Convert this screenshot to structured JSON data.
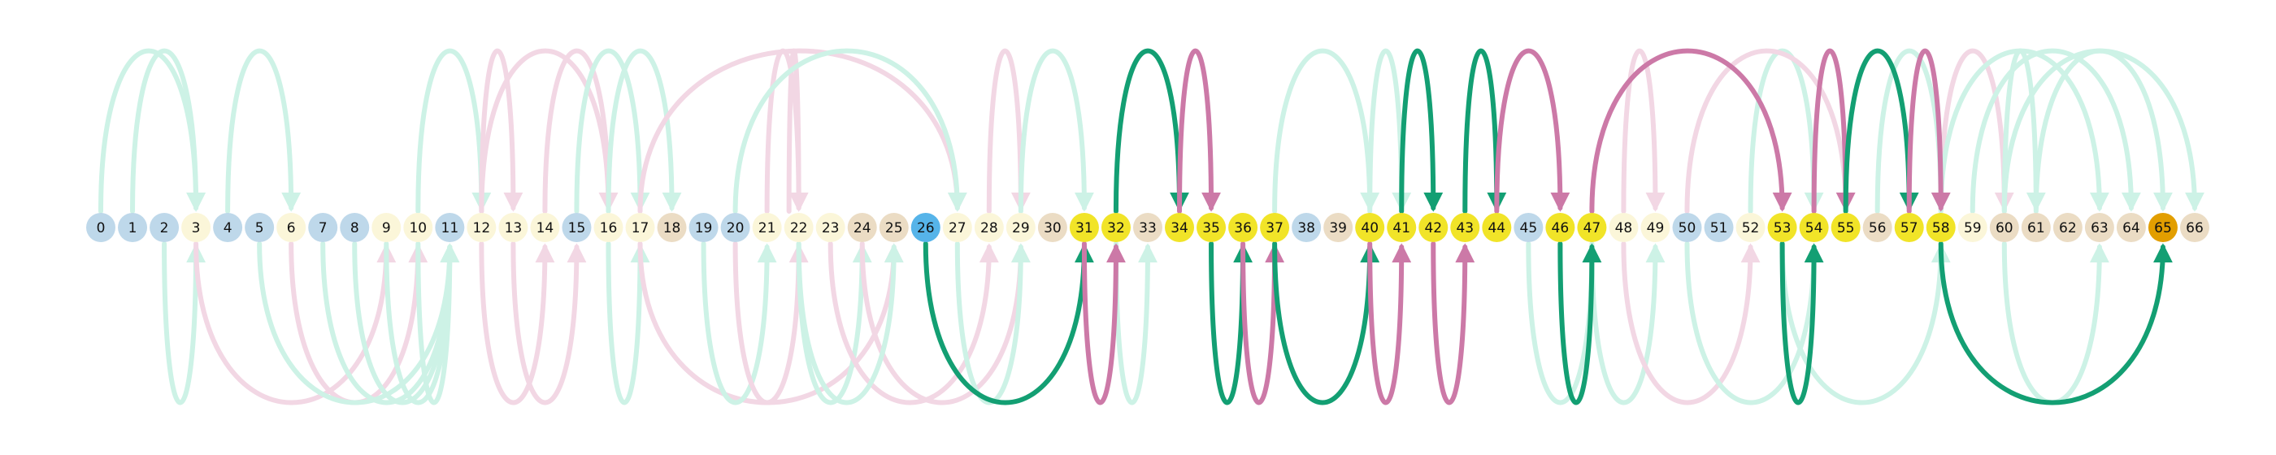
{
  "colors": {
    "green_strong": "#139f73",
    "green_faint": "#cdf2e6",
    "pink_strong": "#cc79a7",
    "pink_faint": "#f2d7e4",
    "node_blue": "#bed8ea",
    "node_cream": "#fbf6d9",
    "node_tan": "#ebdcc4",
    "node_yellow": "#f1e428",
    "node_blue_strong": "#56b4e9",
    "node_orange": "#e29e00"
  },
  "nodes": [
    {
      "label": "0",
      "color": "blue"
    },
    {
      "label": "1",
      "color": "blue"
    },
    {
      "label": "2",
      "color": "blue"
    },
    {
      "label": "3",
      "color": "cream"
    },
    {
      "label": "4",
      "color": "blue"
    },
    {
      "label": "5",
      "color": "blue"
    },
    {
      "label": "6",
      "color": "cream"
    },
    {
      "label": "7",
      "color": "blue"
    },
    {
      "label": "8",
      "color": "blue"
    },
    {
      "label": "9",
      "color": "cream"
    },
    {
      "label": "10",
      "color": "cream"
    },
    {
      "label": "11",
      "color": "blue"
    },
    {
      "label": "12",
      "color": "cream"
    },
    {
      "label": "13",
      "color": "cream"
    },
    {
      "label": "14",
      "color": "cream"
    },
    {
      "label": "15",
      "color": "blue"
    },
    {
      "label": "16",
      "color": "cream"
    },
    {
      "label": "17",
      "color": "cream"
    },
    {
      "label": "18",
      "color": "tan"
    },
    {
      "label": "19",
      "color": "blue"
    },
    {
      "label": "20",
      "color": "blue"
    },
    {
      "label": "21",
      "color": "cream"
    },
    {
      "label": "22",
      "color": "cream"
    },
    {
      "label": "23",
      "color": "cream"
    },
    {
      "label": "24",
      "color": "tan"
    },
    {
      "label": "25",
      "color": "tan"
    },
    {
      "label": "26",
      "color": "blue_strong"
    },
    {
      "label": "27",
      "color": "cream"
    },
    {
      "label": "28",
      "color": "cream"
    },
    {
      "label": "29",
      "color": "cream"
    },
    {
      "label": "30",
      "color": "tan"
    },
    {
      "label": "31",
      "color": "yellow"
    },
    {
      "label": "32",
      "color": "yellow"
    },
    {
      "label": "33",
      "color": "tan"
    },
    {
      "label": "34",
      "color": "yellow"
    },
    {
      "label": "35",
      "color": "yellow"
    },
    {
      "label": "36",
      "color": "yellow"
    },
    {
      "label": "37",
      "color": "yellow"
    },
    {
      "label": "38",
      "color": "blue"
    },
    {
      "label": "39",
      "color": "tan"
    },
    {
      "label": "40",
      "color": "yellow"
    },
    {
      "label": "41",
      "color": "yellow"
    },
    {
      "label": "42",
      "color": "yellow"
    },
    {
      "label": "43",
      "color": "yellow"
    },
    {
      "label": "44",
      "color": "yellow"
    },
    {
      "label": "45",
      "color": "blue"
    },
    {
      "label": "46",
      "color": "yellow"
    },
    {
      "label": "47",
      "color": "yellow"
    },
    {
      "label": "48",
      "color": "cream"
    },
    {
      "label": "49",
      "color": "cream"
    },
    {
      "label": "50",
      "color": "blue"
    },
    {
      "label": "51",
      "color": "blue"
    },
    {
      "label": "52",
      "color": "cream"
    },
    {
      "label": "53",
      "color": "yellow"
    },
    {
      "label": "54",
      "color": "yellow"
    },
    {
      "label": "55",
      "color": "yellow"
    },
    {
      "label": "56",
      "color": "tan"
    },
    {
      "label": "57",
      "color": "yellow"
    },
    {
      "label": "58",
      "color": "yellow"
    },
    {
      "label": "59",
      "color": "cream"
    },
    {
      "label": "60",
      "color": "tan"
    },
    {
      "label": "61",
      "color": "tan"
    },
    {
      "label": "62",
      "color": "tan"
    },
    {
      "label": "63",
      "color": "tan"
    },
    {
      "label": "64",
      "color": "tan"
    },
    {
      "label": "65",
      "color": "orange"
    },
    {
      "label": "66",
      "color": "tan"
    }
  ],
  "arcs": [
    {
      "from": 0,
      "to": 3,
      "side": "top",
      "color": "green_faint"
    },
    {
      "from": 1,
      "to": 3,
      "side": "top",
      "color": "green_faint"
    },
    {
      "from": 4,
      "to": 6,
      "side": "top",
      "color": "green_faint"
    },
    {
      "from": 10,
      "to": 12,
      "side": "top",
      "color": "green_faint"
    },
    {
      "from": 12,
      "to": 13,
      "side": "top",
      "color": "pink_faint"
    },
    {
      "from": 12,
      "to": 16,
      "side": "top",
      "color": "pink_faint"
    },
    {
      "from": 14,
      "to": 16,
      "side": "top",
      "color": "pink_faint"
    },
    {
      "from": 15,
      "to": 17,
      "side": "top",
      "color": "green_faint"
    },
    {
      "from": 16,
      "to": 18,
      "side": "top",
      "color": "green_faint"
    },
    {
      "from": 17,
      "to": 27,
      "side": "top",
      "color": "pink_faint"
    },
    {
      "from": 22,
      "to": 22,
      "side": "top",
      "color": "pink_faint"
    },
    {
      "from": 21,
      "to": 22,
      "side": "top",
      "color": "pink_faint"
    },
    {
      "from": 20,
      "to": 27,
      "side": "top",
      "color": "green_faint"
    },
    {
      "from": 28,
      "to": 29,
      "side": "top",
      "color": "pink_faint"
    },
    {
      "from": 29,
      "to": 31,
      "side": "top",
      "color": "green_faint"
    },
    {
      "from": 32,
      "to": 34,
      "side": "top",
      "color": "green_strong"
    },
    {
      "from": 34,
      "to": 35,
      "side": "top",
      "color": "pink_strong"
    },
    {
      "from": 37,
      "to": 40,
      "side": "top",
      "color": "green_faint"
    },
    {
      "from": 40,
      "to": 41,
      "side": "top",
      "color": "green_faint"
    },
    {
      "from": 41,
      "to": 42,
      "side": "top",
      "color": "green_strong"
    },
    {
      "from": 43,
      "to": 44,
      "side": "top",
      "color": "green_strong"
    },
    {
      "from": 44,
      "to": 46,
      "side": "top",
      "color": "pink_strong"
    },
    {
      "from": 47,
      "to": 53,
      "side": "top",
      "color": "pink_strong"
    },
    {
      "from": 48,
      "to": 49,
      "side": "top",
      "color": "pink_faint"
    },
    {
      "from": 52,
      "to": 54,
      "side": "top",
      "color": "green_faint"
    },
    {
      "from": 50,
      "to": 55,
      "side": "top",
      "color": "pink_faint"
    },
    {
      "from": 54,
      "to": 55,
      "side": "top",
      "color": "pink_strong"
    },
    {
      "from": 55,
      "to": 57,
      "side": "top",
      "color": "green_strong"
    },
    {
      "from": 56,
      "to": 58,
      "side": "top",
      "color": "green_faint"
    },
    {
      "from": 57,
      "to": 58,
      "side": "top",
      "color": "pink_strong"
    },
    {
      "from": 58,
      "to": 60,
      "side": "top",
      "color": "pink_faint"
    },
    {
      "from": 58,
      "to": 63,
      "side": "top",
      "color": "green_faint"
    },
    {
      "from": 59,
      "to": 64,
      "side": "top",
      "color": "green_faint"
    },
    {
      "from": 60,
      "to": 66,
      "side": "top",
      "color": "green_faint"
    },
    {
      "from": 60,
      "to": 61,
      "side": "top",
      "color": "green_faint"
    },
    {
      "from": 61,
      "to": 65,
      "side": "top",
      "color": "green_faint"
    },
    {
      "from": 2,
      "to": 3,
      "side": "bottom",
      "color": "green_faint"
    },
    {
      "from": 3,
      "to": 9,
      "side": "bottom",
      "color": "pink_faint"
    },
    {
      "from": 6,
      "to": 10,
      "side": "bottom",
      "color": "pink_faint"
    },
    {
      "from": 5,
      "to": 11,
      "side": "bottom",
      "color": "green_faint"
    },
    {
      "from": 7,
      "to": 11,
      "side": "bottom",
      "color": "green_faint"
    },
    {
      "from": 8,
      "to": 11,
      "side": "bottom",
      "color": "green_faint"
    },
    {
      "from": 9,
      "to": 11,
      "side": "bottom",
      "color": "green_faint"
    },
    {
      "from": 10,
      "to": 11,
      "side": "bottom",
      "color": "green_faint"
    },
    {
      "from": 12,
      "to": 14,
      "side": "bottom",
      "color": "pink_faint"
    },
    {
      "from": 13,
      "to": 15,
      "side": "bottom",
      "color": "pink_faint"
    },
    {
      "from": 16,
      "to": 17,
      "side": "bottom",
      "color": "green_faint"
    },
    {
      "from": 17,
      "to": 25,
      "side": "bottom",
      "color": "pink_faint"
    },
    {
      "from": 19,
      "to": 21,
      "side": "bottom",
      "color": "green_faint"
    },
    {
      "from": 20,
      "to": 22,
      "side": "bottom",
      "color": "pink_faint"
    },
    {
      "from": 22,
      "to": 24,
      "side": "bottom",
      "color": "green_faint"
    },
    {
      "from": 23,
      "to": 28,
      "side": "bottom",
      "color": "pink_faint"
    },
    {
      "from": 24,
      "to": 29,
      "side": "bottom",
      "color": "pink_faint"
    },
    {
      "from": 22,
      "to": 25,
      "side": "bottom",
      "color": "green_faint"
    },
    {
      "from": 27,
      "to": 29,
      "side": "bottom",
      "color": "green_faint"
    },
    {
      "from": 26,
      "to": 31,
      "side": "bottom",
      "color": "green_strong"
    },
    {
      "from": 31,
      "to": 32,
      "side": "bottom",
      "color": "pink_strong"
    },
    {
      "from": 32,
      "to": 33,
      "side": "bottom",
      "color": "green_faint"
    },
    {
      "from": 35,
      "to": 36,
      "side": "bottom",
      "color": "green_strong"
    },
    {
      "from": 36,
      "to": 37,
      "side": "bottom",
      "color": "pink_strong"
    },
    {
      "from": 37,
      "to": 40,
      "side": "bottom",
      "color": "green_strong"
    },
    {
      "from": 40,
      "to": 41,
      "side": "bottom",
      "color": "pink_strong"
    },
    {
      "from": 42,
      "to": 43,
      "side": "bottom",
      "color": "pink_strong"
    },
    {
      "from": 45,
      "to": 47,
      "side": "bottom",
      "color": "green_faint"
    },
    {
      "from": 46,
      "to": 47,
      "side": "bottom",
      "color": "green_strong"
    },
    {
      "from": 47,
      "to": 49,
      "side": "bottom",
      "color": "green_faint"
    },
    {
      "from": 48,
      "to": 52,
      "side": "bottom",
      "color": "pink_faint"
    },
    {
      "from": 50,
      "to": 54,
      "side": "bottom",
      "color": "green_faint"
    },
    {
      "from": 53,
      "to": 54,
      "side": "bottom",
      "color": "green_strong"
    },
    {
      "from": 53,
      "to": 58,
      "side": "bottom",
      "color": "green_faint"
    },
    {
      "from": 58,
      "to": 65,
      "side": "bottom",
      "color": "green_strong"
    },
    {
      "from": 60,
      "to": 63,
      "side": "bottom",
      "color": "green_faint"
    }
  ]
}
